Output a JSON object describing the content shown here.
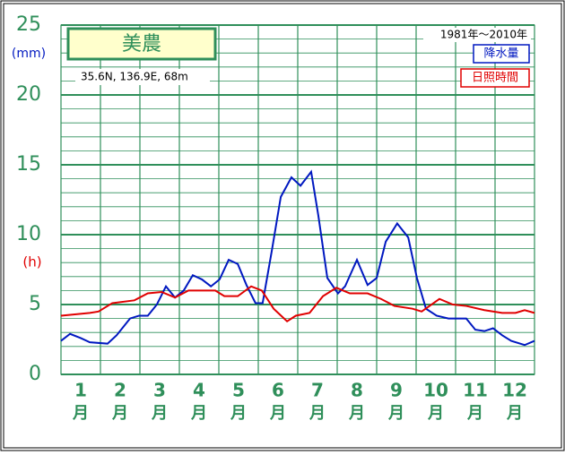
{
  "chart_data": {
    "type": "line",
    "title": "美農",
    "subtitle": "35.6N,  136.9E,  68m",
    "period": "1981年〜2010年",
    "y_unit_left": "(mm)",
    "y_unit_right": "(h)",
    "x_unit": "月",
    "xlim": [
      0,
      12
    ],
    "xticks": [
      {
        "value": 0.5,
        "label": "1"
      },
      {
        "value": 1.5,
        "label": "2"
      },
      {
        "value": 2.5,
        "label": "3"
      },
      {
        "value": 3.5,
        "label": "4"
      },
      {
        "value": 4.5,
        "label": "5"
      },
      {
        "value": 5.5,
        "label": "6"
      },
      {
        "value": 6.5,
        "label": "7"
      },
      {
        "value": 7.5,
        "label": "8"
      },
      {
        "value": 8.5,
        "label": "9"
      },
      {
        "value": 9.5,
        "label": "10"
      },
      {
        "value": 10.5,
        "label": "11"
      },
      {
        "value": 11.5,
        "label": "12"
      }
    ],
    "xgrid": [
      0,
      1,
      2,
      3,
      4,
      5,
      6,
      7,
      8,
      9,
      10,
      11,
      12
    ],
    "ylim": [
      0,
      25
    ],
    "yticks": [
      0,
      5,
      10,
      15,
      20,
      25
    ],
    "minor_yticks": [
      1,
      2,
      3,
      4,
      6,
      7,
      8,
      9,
      11,
      12,
      13,
      14,
      16,
      17,
      18,
      19,
      21,
      22,
      23,
      24
    ],
    "grid": true,
    "series": [
      {
        "name": "降水量",
        "color": "#0018c0",
        "x": [
          0,
          0.23,
          0.5,
          0.73,
          1.18,
          1.41,
          1.75,
          1.98,
          2.2,
          2.43,
          2.66,
          2.89,
          3.11,
          3.34,
          3.57,
          3.8,
          4.02,
          4.25,
          4.48,
          4.7,
          4.93,
          5.11,
          5.34,
          5.57,
          5.84,
          6.07,
          6.34,
          6.52,
          6.75,
          7.02,
          7.2,
          7.5,
          7.77,
          8,
          8.23,
          8.52,
          8.8,
          9.02,
          9.25,
          9.52,
          9.82,
          10.05,
          10.27,
          10.5,
          10.73,
          10.95,
          11.18,
          11.41,
          11.75,
          12
        ],
        "values": [
          2.4,
          2.9,
          2.6,
          2.3,
          2.2,
          2.8,
          4.0,
          4.2,
          4.2,
          5.0,
          6.3,
          5.5,
          6.0,
          7.1,
          6.8,
          6.3,
          6.8,
          8.2,
          7.9,
          6.4,
          5.1,
          5.1,
          8.8,
          12.7,
          14.1,
          13.5,
          14.5,
          11.4,
          6.9,
          5.8,
          6.3,
          8.2,
          6.4,
          6.9,
          9.5,
          10.8,
          9.8,
          6.9,
          4.7,
          4.2,
          4.0,
          4.0,
          4.0,
          3.2,
          3.1,
          3.3,
          2.8,
          2.4,
          2.1,
          2.4
        ]
      },
      {
        "name": "日照時間",
        "color": "#e00000",
        "x": [
          0,
          0.73,
          0.95,
          1.3,
          1.86,
          2.2,
          2.55,
          2.89,
          3.23,
          3.91,
          4.14,
          4.48,
          4.82,
          5.09,
          5.39,
          5.73,
          5.95,
          6.3,
          6.64,
          6.98,
          7.32,
          7.77,
          8.11,
          8.45,
          8.91,
          9.14,
          9.59,
          9.93,
          10.27,
          10.73,
          11.18,
          11.52,
          11.75,
          12
        ],
        "values": [
          4.2,
          4.4,
          4.5,
          5.1,
          5.3,
          5.8,
          5.9,
          5.5,
          6.0,
          6.0,
          5.6,
          5.6,
          6.3,
          6.0,
          4.7,
          3.8,
          4.2,
          4.4,
          5.6,
          6.2,
          5.8,
          5.8,
          5.4,
          4.9,
          4.7,
          4.5,
          5.4,
          5.0,
          4.9,
          4.6,
          4.4,
          4.4,
          4.6,
          4.4
        ]
      }
    ]
  }
}
